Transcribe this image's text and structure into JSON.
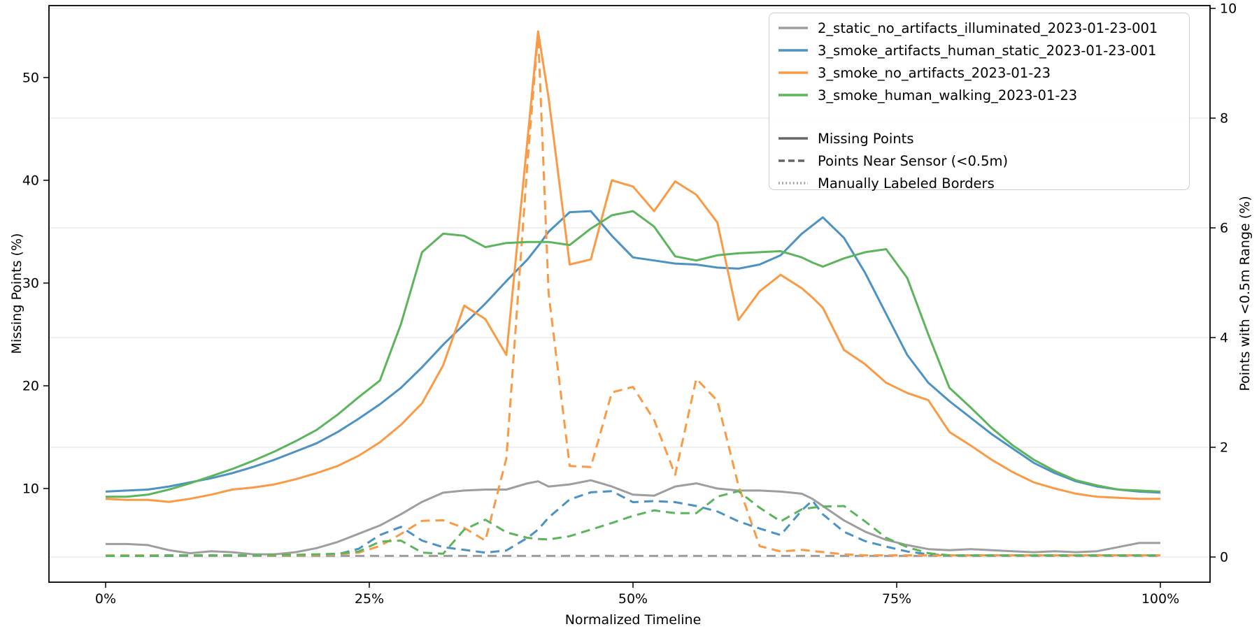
{
  "chart_data": {
    "type": "line",
    "title": "",
    "xlabel": "Normalized Timeline",
    "ylabel_left": "Missing Points (%)",
    "ylabel_right": "Points with <0.5m Range (%)",
    "x_tick_labels": [
      "0%",
      "25%",
      "50%",
      "75%",
      "100%"
    ],
    "x_ticks": [
      0,
      25,
      50,
      75,
      100
    ],
    "y_left_ticks": [
      10,
      20,
      30,
      40,
      50
    ],
    "y_right_ticks": [
      0,
      2,
      4,
      6,
      8,
      10
    ],
    "x_range": [
      -5.4,
      104.8
    ],
    "y_left_range": [
      1.1,
      57.2
    ],
    "y_right_range": [
      -0.46,
      10.5
    ],
    "grid": "horizontal gridlines aligned to right-axis ticks",
    "legend_position": "upper right",
    "x": [
      0,
      2,
      4,
      6,
      8,
      10,
      12,
      14,
      16,
      18,
      20,
      22,
      24,
      26,
      28,
      30,
      32,
      34,
      36,
      38,
      40,
      41,
      42,
      44,
      46,
      48,
      50,
      52,
      54,
      56,
      58,
      60,
      62,
      64,
      66,
      67,
      68,
      70,
      72,
      74,
      76,
      78,
      80,
      82,
      84,
      86,
      88,
      90,
      92,
      94,
      96,
      98,
      100
    ],
    "series": [
      {
        "dataset": "2_static_no_artifacts_illuminated_2023-01-23-001",
        "metric": "Missing Points",
        "axis": "left",
        "style": "solid",
        "color": "#9e9e9e",
        "values": [
          4.6,
          4.6,
          4.5,
          4.0,
          3.7,
          3.9,
          3.8,
          3.6,
          3.6,
          3.8,
          4.2,
          4.8,
          5.6,
          6.4,
          7.5,
          8.7,
          9.6,
          9.8,
          9.9,
          9.9,
          10.5,
          10.7,
          10.2,
          10.4,
          10.8,
          10.2,
          9.4,
          9.3,
          10.2,
          10.5,
          10.0,
          9.8,
          9.8,
          9.7,
          9.5,
          9.0,
          8.3,
          6.9,
          5.8,
          5.0,
          4.5,
          4.1,
          4.0,
          4.1,
          4.0,
          3.9,
          3.8,
          3.9,
          3.8,
          3.9,
          4.3,
          4.7,
          4.7
        ]
      },
      {
        "dataset": "2_static_no_artifacts_illuminated_2023-01-23-001",
        "metric": "Points Near Sensor (<0.5m)",
        "axis": "right",
        "style": "dashed",
        "color": "#9e9e9e",
        "values": [
          0.02,
          0.02,
          0.02,
          0.02,
          0.02,
          0.02,
          0.02,
          0.02,
          0.02,
          0.02,
          0.02,
          0.02,
          0.02,
          0.02,
          0.02,
          0.02,
          0.02,
          0.02,
          0.02,
          0.02,
          0.02,
          0.02,
          0.02,
          0.02,
          0.02,
          0.02,
          0.02,
          0.02,
          0.02,
          0.02,
          0.02,
          0.02,
          0.02,
          0.02,
          0.02,
          0.02,
          0.02,
          0.02,
          0.02,
          0.02,
          0.02,
          0.02,
          0.02,
          0.02,
          0.02,
          0.02,
          0.02,
          0.02,
          0.02,
          0.02,
          0.02,
          0.02,
          0.02
        ]
      },
      {
        "dataset": "3_smoke_artifacts_human_static_2023-01-23-001",
        "metric": "Missing Points",
        "axis": "left",
        "style": "solid",
        "color": "#4c92c3",
        "values": [
          9.7,
          9.8,
          9.9,
          10.2,
          10.6,
          11.0,
          11.5,
          12.1,
          12.8,
          13.6,
          14.4,
          15.5,
          16.8,
          18.2,
          19.8,
          21.8,
          24.0,
          26.0,
          28.0,
          30.2,
          32.3,
          33.6,
          35.0,
          36.9,
          37.0,
          34.6,
          32.5,
          32.2,
          31.9,
          31.8,
          31.5,
          31.4,
          31.8,
          32.7,
          34.8,
          35.6,
          36.4,
          34.4,
          31.0,
          27.0,
          23.0,
          20.3,
          18.5,
          16.9,
          15.3,
          13.9,
          12.5,
          11.5,
          10.7,
          10.2,
          9.9,
          9.7,
          9.6
        ]
      },
      {
        "dataset": "3_smoke_artifacts_human_static_2023-01-23-001",
        "metric": "Points Near Sensor (<0.5m)",
        "axis": "right",
        "style": "dashed",
        "color": "#4c92c3",
        "values": [
          0.02,
          0.02,
          0.02,
          0.02,
          0.03,
          0.03,
          0.03,
          0.03,
          0.03,
          0.03,
          0.04,
          0.05,
          0.15,
          0.4,
          0.55,
          0.3,
          0.18,
          0.13,
          0.08,
          0.12,
          0.35,
          0.5,
          0.72,
          1.05,
          1.18,
          1.2,
          1.0,
          1.02,
          1.0,
          0.93,
          0.83,
          0.65,
          0.52,
          0.4,
          0.85,
          1.03,
          0.78,
          0.46,
          0.29,
          0.19,
          0.1,
          0.05,
          0.03,
          0.03,
          0.03,
          0.03,
          0.03,
          0.03,
          0.03,
          0.03,
          0.03,
          0.03,
          0.03
        ]
      },
      {
        "dataset": "3_smoke_no_artifacts_2023-01-23",
        "metric": "Missing Points",
        "axis": "left",
        "style": "solid",
        "color": "#fb9a45",
        "values": [
          9.0,
          8.9,
          8.9,
          8.7,
          9.0,
          9.4,
          9.9,
          10.1,
          10.4,
          10.9,
          11.5,
          12.2,
          13.2,
          14.5,
          16.2,
          18.3,
          22.0,
          27.8,
          26.5,
          23.0,
          44.0,
          54.5,
          48.0,
          31.8,
          32.3,
          40.0,
          39.4,
          37.0,
          39.9,
          38.6,
          35.9,
          26.4,
          29.2,
          30.8,
          29.5,
          28.6,
          27.6,
          23.5,
          22.1,
          20.3,
          19.3,
          18.6,
          15.5,
          14.2,
          12.8,
          11.6,
          10.6,
          10.0,
          9.5,
          9.2,
          9.1,
          9.0,
          9.0
        ]
      },
      {
        "dataset": "3_smoke_no_artifacts_2023-01-23",
        "metric": "Points Near Sensor (<0.5m)",
        "axis": "right",
        "style": "dashed",
        "color": "#fb9a45",
        "values": [
          0.03,
          0.03,
          0.03,
          0.03,
          0.03,
          0.03,
          0.03,
          0.03,
          0.03,
          0.03,
          0.04,
          0.05,
          0.08,
          0.2,
          0.42,
          0.66,
          0.67,
          0.53,
          0.3,
          1.8,
          7.2,
          9.55,
          4.8,
          1.66,
          1.64,
          3.0,
          3.1,
          2.5,
          1.5,
          3.25,
          2.85,
          1.3,
          0.2,
          0.1,
          0.13,
          0.11,
          0.09,
          0.05,
          0.03,
          0.03,
          0.03,
          0.03,
          0.03,
          0.03,
          0.03,
          0.03,
          0.03,
          0.03,
          0.03,
          0.03,
          0.03,
          0.03,
          0.03
        ]
      },
      {
        "dataset": "3_smoke_human_walking_2023-01-23",
        "metric": "Missing Points",
        "axis": "left",
        "style": "solid",
        "color": "#5cb55c",
        "values": [
          9.2,
          9.2,
          9.4,
          9.9,
          10.5,
          11.2,
          11.9,
          12.7,
          13.6,
          14.6,
          15.7,
          17.2,
          18.9,
          20.5,
          26.0,
          33.0,
          34.8,
          34.6,
          33.5,
          33.9,
          34.0,
          34.0,
          34.0,
          33.7,
          35.3,
          36.6,
          37.0,
          35.5,
          32.6,
          32.2,
          32.7,
          32.9,
          33.0,
          33.1,
          32.5,
          32.0,
          31.6,
          32.4,
          33.0,
          33.3,
          30.5,
          25.0,
          19.8,
          17.9,
          15.9,
          14.2,
          12.8,
          11.7,
          10.8,
          10.3,
          9.9,
          9.8,
          9.7
        ]
      },
      {
        "dataset": "3_smoke_human_walking_2023-01-23",
        "metric": "Points Near Sensor (<0.5m)",
        "axis": "right",
        "style": "dashed",
        "color": "#5cb55c",
        "values": [
          0.02,
          0.02,
          0.02,
          0.03,
          0.03,
          0.03,
          0.03,
          0.03,
          0.04,
          0.04,
          0.05,
          0.06,
          0.1,
          0.28,
          0.3,
          0.08,
          0.06,
          0.5,
          0.68,
          0.45,
          0.35,
          0.33,
          0.32,
          0.38,
          0.5,
          0.62,
          0.75,
          0.85,
          0.8,
          0.8,
          1.1,
          1.2,
          0.9,
          0.65,
          0.87,
          0.9,
          0.92,
          0.93,
          0.65,
          0.35,
          0.18,
          0.07,
          0.03,
          0.03,
          0.03,
          0.03,
          0.03,
          0.03,
          0.03,
          0.03,
          0.03,
          0.03,
          0.03
        ]
      }
    ],
    "legend": {
      "datasets": [
        {
          "label": "2_static_no_artifacts_illuminated_2023-01-23-001",
          "color": "#9e9e9e"
        },
        {
          "label": "3_smoke_artifacts_human_static_2023-01-23-001",
          "color": "#4c92c3"
        },
        {
          "label": "3_smoke_no_artifacts_2023-01-23",
          "color": "#fb9a45"
        },
        {
          "label": "3_smoke_human_walking_2023-01-23",
          "color": "#5cb55c"
        }
      ],
      "styles": [
        {
          "label": "Missing Points",
          "dash": "solid",
          "color": "#666666"
        },
        {
          "label": "Points Near Sensor (<0.5m)",
          "dash": "dashed",
          "color": "#666666"
        },
        {
          "label": "Manually Labeled Borders",
          "dash": "dotted",
          "color": "#999999"
        }
      ]
    },
    "colors": {
      "grid": "#e7e7e7",
      "spine": "#000000",
      "gray_series": "#9e9e9e",
      "blue_series": "#4c92c3",
      "orange_series": "#fb9a45",
      "green_series": "#5cb55c"
    }
  }
}
